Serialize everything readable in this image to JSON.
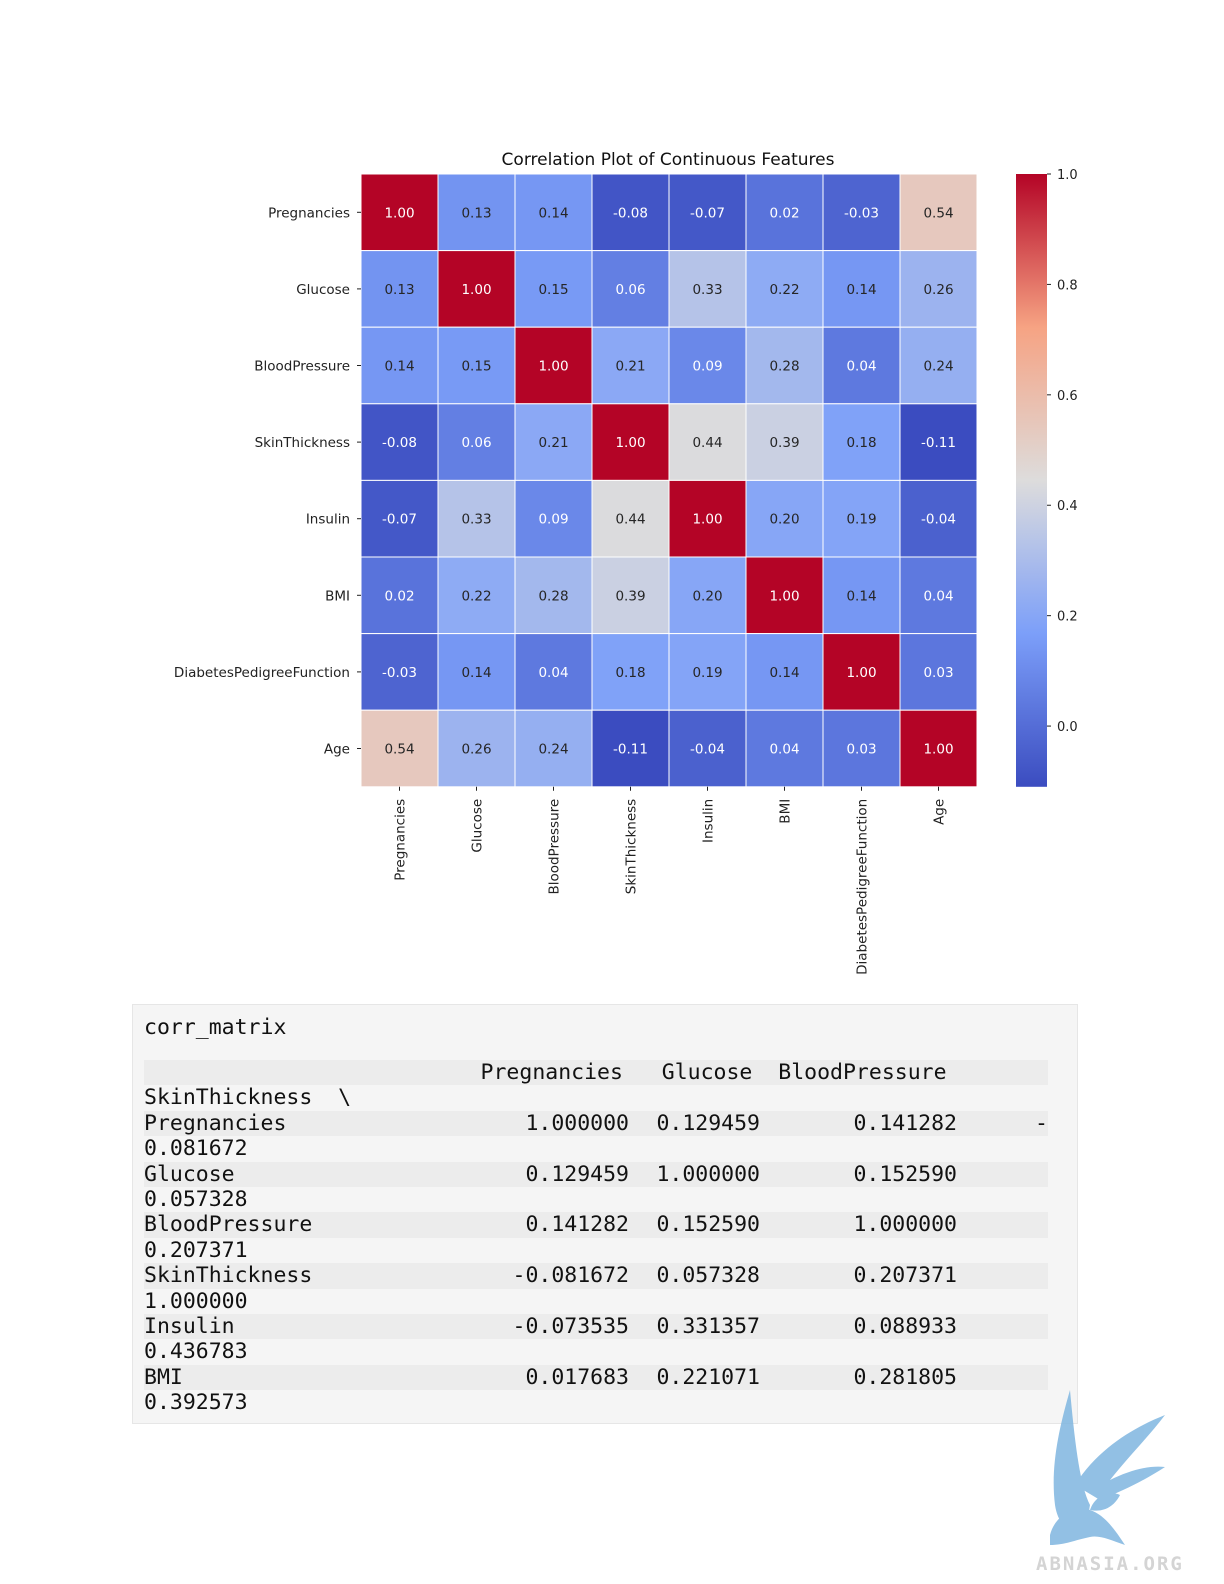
{
  "chart_data": {
    "type": "heatmap",
    "title": "Correlation Plot of Continuous Features",
    "rows": [
      "Pregnancies",
      "Glucose",
      "BloodPressure",
      "SkinThickness",
      "Insulin",
      "BMI",
      "DiabetesPedigreeFunction",
      "Age"
    ],
    "columns": [
      "Pregnancies",
      "Glucose",
      "BloodPressure",
      "SkinThickness",
      "Insulin",
      "BMI",
      "DiabetesPedigreeFunction",
      "Age"
    ],
    "values": [
      [
        1.0,
        0.13,
        0.14,
        -0.08,
        -0.07,
        0.02,
        -0.03,
        0.54
      ],
      [
        0.13,
        1.0,
        0.15,
        0.06,
        0.33,
        0.22,
        0.14,
        0.26
      ],
      [
        0.14,
        0.15,
        1.0,
        0.21,
        0.09,
        0.28,
        0.04,
        0.24
      ],
      [
        -0.08,
        0.06,
        0.21,
        1.0,
        0.44,
        0.39,
        0.18,
        -0.11
      ],
      [
        -0.07,
        0.33,
        0.09,
        0.44,
        1.0,
        0.2,
        0.19,
        -0.04
      ],
      [
        0.02,
        0.22,
        0.28,
        0.39,
        0.2,
        1.0,
        0.14,
        0.04
      ],
      [
        -0.03,
        0.14,
        0.04,
        0.18,
        0.19,
        0.14,
        1.0,
        0.03
      ],
      [
        0.54,
        0.26,
        0.24,
        -0.11,
        -0.04,
        0.04,
        0.03,
        1.0
      ]
    ],
    "colormap": "coolwarm",
    "colorbar": {
      "range": [
        -0.11,
        1.0
      ],
      "ticks": [
        "1.0",
        "0.8",
        "0.6",
        "0.4",
        "0.2",
        "0.0"
      ]
    },
    "annotation_format": "0.00"
  },
  "code_cell": {
    "input": "corr_matrix",
    "output_header": "                          Pregnancies   Glucose  BloodPressure",
    "output_header_wrap": "SkinThickness  \\",
    "output_rows": [
      {
        "name": "Pregnancies",
        "pregnancies": "1.000000",
        "glucose": "0.129459",
        "bloodpressure": "0.141282",
        "trail": "-",
        "skinthickness": "0.081672"
      },
      {
        "name": "Glucose",
        "pregnancies": "0.129459",
        "glucose": "1.000000",
        "bloodpressure": "0.152590",
        "trail": "",
        "skinthickness": "0.057328"
      },
      {
        "name": "BloodPressure",
        "pregnancies": "0.141282",
        "glucose": "0.152590",
        "bloodpressure": "1.000000",
        "trail": "",
        "skinthickness": "0.207371"
      },
      {
        "name": "SkinThickness",
        "pregnancies": "-0.081672",
        "glucose": "0.057328",
        "bloodpressure": "0.207371",
        "trail": "",
        "skinthickness": "1.000000"
      },
      {
        "name": "Insulin",
        "pregnancies": "-0.073535",
        "glucose": "0.331357",
        "bloodpressure": "0.088933",
        "trail": "",
        "skinthickness": "0.436783"
      },
      {
        "name": "BMI",
        "pregnancies": "0.017683",
        "glucose": "0.221071",
        "bloodpressure": "0.281805",
        "trail": "",
        "skinthickness": "0.392573"
      }
    ]
  },
  "watermark": {
    "text": "ABNASIA.ORG",
    "icon": "griffin-logo-icon",
    "color": "#7fb6e0"
  }
}
